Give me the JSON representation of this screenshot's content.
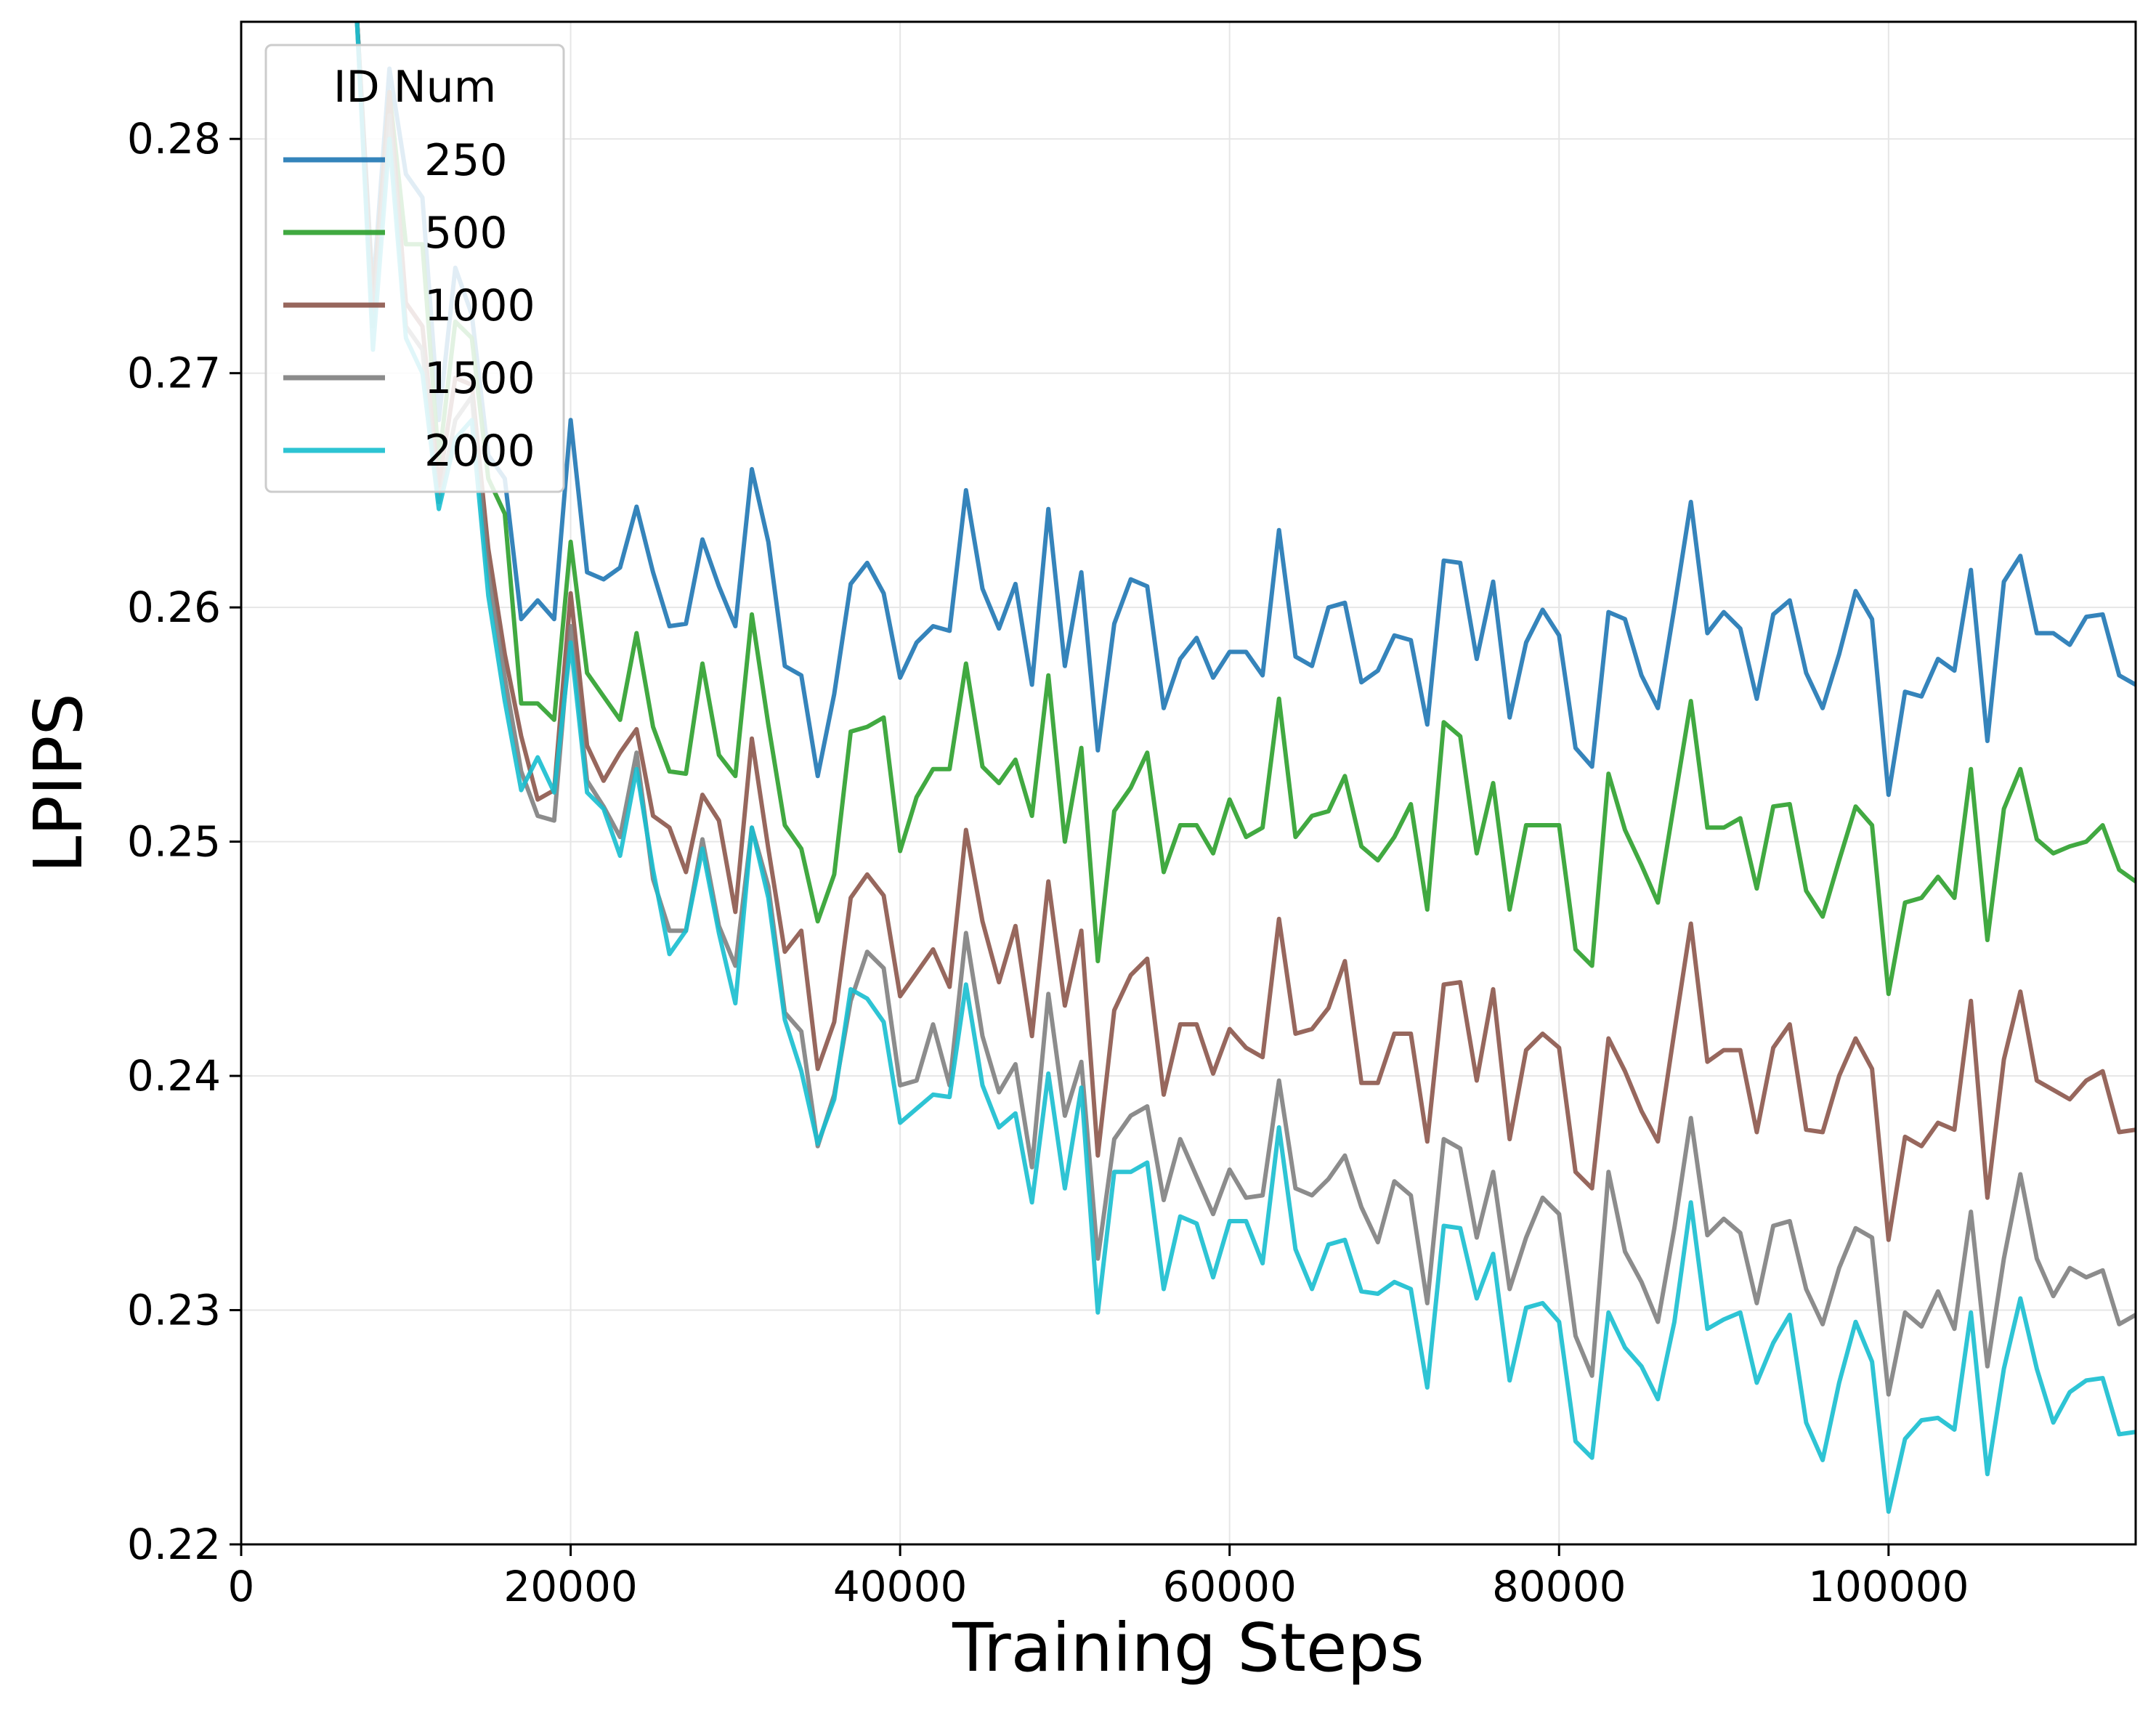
{
  "chart_data": {
    "type": "line",
    "title": "",
    "xlabel": "Training Steps",
    "ylabel": "LPIPS",
    "xlim": [
      0,
      115000
    ],
    "ylim": [
      0.22,
      0.285
    ],
    "x_ticks": [
      0,
      20000,
      40000,
      60000,
      80000,
      100000
    ],
    "x_tick_labels": [
      "0",
      "20000",
      "40000",
      "60000",
      "80000",
      "100000"
    ],
    "y_ticks": [
      0.22,
      0.23,
      0.24,
      0.25,
      0.26,
      0.27,
      0.28
    ],
    "y_tick_labels": [
      "0.22",
      "0.23",
      "0.24",
      "0.25",
      "0.26",
      "0.27",
      "0.28"
    ],
    "grid": true,
    "legend": {
      "title": "ID Num",
      "position": "top-left"
    },
    "x": [
      6000,
      7000,
      8000,
      9000,
      10000,
      11000,
      12000,
      13000,
      14000,
      15000,
      16000,
      17000,
      18000,
      19000,
      20000,
      21000,
      22000,
      23000,
      24000,
      25000,
      26000,
      27000,
      28000,
      29000,
      30000,
      31000,
      32000,
      33000,
      34000,
      35000,
      36000,
      37000,
      38000,
      39000,
      40000,
      41000,
      42000,
      43000,
      44000,
      45000,
      46000,
      47000,
      48000,
      49000,
      50000,
      51000,
      52000,
      53000,
      54000,
      55000,
      56000,
      57000,
      58000,
      59000,
      60000,
      61000,
      62000,
      63000,
      64000,
      65000,
      66000,
      67000,
      68000,
      69000,
      70000,
      71000,
      72000,
      73000,
      74000,
      75000,
      76000,
      77000,
      78000,
      79000,
      80000,
      81000,
      82000,
      83000,
      84000,
      85000,
      86000,
      87000,
      88000,
      89000,
      90000,
      91000,
      92000,
      93000,
      94000,
      95000,
      96000,
      97000,
      98000,
      99000,
      100000,
      101000,
      102000,
      103000,
      104000,
      105000,
      106000,
      107000,
      108000,
      109000,
      110000,
      111000,
      112000,
      113000,
      114000,
      115000
    ],
    "series": [
      {
        "name": "250",
        "color": "#1f77b4",
        "values": [
          0.2855,
          0.2855,
          0.2735,
          0.283,
          0.2785,
          0.2775,
          0.268,
          0.2745,
          0.2725,
          0.2665,
          0.2655,
          0.2595,
          0.2603,
          0.2595,
          0.268,
          0.2615,
          0.2612,
          0.2617,
          0.2643,
          0.2615,
          0.2592,
          0.2593,
          0.2629,
          0.2609,
          0.2592,
          0.2659,
          0.2628,
          0.2575,
          0.2571,
          0.2528,
          0.2563,
          0.261,
          0.2619,
          0.2606,
          0.257,
          0.2585,
          0.2592,
          0.259,
          0.265,
          0.2608,
          0.2591,
          0.261,
          0.2567,
          0.2642,
          0.2575,
          0.2615,
          0.2539,
          0.2593,
          0.2612,
          0.2609,
          0.2557,
          0.2578,
          0.2587,
          0.257,
          0.2581,
          0.2581,
          0.2571,
          0.2633,
          0.2579,
          0.2575,
          0.26,
          0.2602,
          0.2568,
          0.2573,
          0.2588,
          0.2586,
          0.255,
          0.262,
          0.2619,
          0.2578,
          0.2611,
          0.2553,
          0.2585,
          0.2599,
          0.2588,
          0.254,
          0.2532,
          0.2598,
          0.2595,
          0.2571,
          0.2557,
          0.26,
          0.2645,
          0.2589,
          0.2598,
          0.2591,
          0.2561,
          0.2597,
          0.2603,
          0.2572,
          0.2557,
          0.258,
          0.2607,
          0.2595,
          0.252,
          0.2564,
          0.2562,
          0.2578,
          0.2573,
          0.2616,
          0.2543,
          0.2611,
          0.2622,
          0.2589,
          0.2589,
          0.2584,
          0.2596,
          0.2597,
          0.2571,
          0.2567
        ]
      },
      {
        "name": "500",
        "color": "#2ca02c",
        "values": [
          0.2855,
          0.2855,
          0.273,
          0.282,
          0.2755,
          0.2755,
          0.2662,
          0.2722,
          0.2715,
          0.2655,
          0.264,
          0.2559,
          0.2559,
          0.2552,
          0.2628,
          0.2572,
          0.2562,
          0.2552,
          0.2589,
          0.2549,
          0.253,
          0.2529,
          0.2576,
          0.2537,
          0.2528,
          0.2597,
          0.255,
          0.2507,
          0.2497,
          0.2466,
          0.2486,
          0.2547,
          0.2549,
          0.2553,
          0.2496,
          0.2519,
          0.2531,
          0.2531,
          0.2576,
          0.2532,
          0.2525,
          0.2535,
          0.2511,
          0.2571,
          0.25,
          0.254,
          0.2449,
          0.2513,
          0.2523,
          0.2538,
          0.2487,
          0.2507,
          0.2507,
          0.2495,
          0.2518,
          0.2502,
          0.2506,
          0.2561,
          0.2502,
          0.2511,
          0.2513,
          0.2528,
          0.2498,
          0.2492,
          0.2502,
          0.2516,
          0.2471,
          0.2551,
          0.2545,
          0.2495,
          0.2525,
          0.2471,
          0.2507,
          0.2507,
          0.2507,
          0.2454,
          0.2447,
          0.2529,
          0.2505,
          0.249,
          0.2474,
          0.2517,
          0.256,
          0.2506,
          0.2506,
          0.251,
          0.248,
          0.2515,
          0.2516,
          0.2479,
          0.2468,
          0.2492,
          0.2515,
          0.2507,
          0.2435,
          0.2474,
          0.2476,
          0.2485,
          0.2476,
          0.2531,
          0.2458,
          0.2514,
          0.2531,
          0.2501,
          0.2495,
          0.2498,
          0.25,
          0.2507,
          0.2488,
          0.2483
        ]
      },
      {
        "name": "1000",
        "color": "#8c564b",
        "values": [
          0.2855,
          0.2855,
          0.273,
          0.282,
          0.273,
          0.272,
          0.2652,
          0.2698,
          0.2695,
          0.2625,
          0.258,
          0.2545,
          0.2518,
          0.2522,
          0.2606,
          0.2541,
          0.2526,
          0.2538,
          0.2548,
          0.2511,
          0.2506,
          0.2487,
          0.252,
          0.2509,
          0.247,
          0.2544,
          0.2497,
          0.2453,
          0.2462,
          0.2403,
          0.2423,
          0.2476,
          0.2486,
          0.2477,
          0.2434,
          0.2444,
          0.2454,
          0.2438,
          0.2505,
          0.2466,
          0.244,
          0.2464,
          0.2417,
          0.2483,
          0.243,
          0.2462,
          0.2366,
          0.2428,
          0.2443,
          0.245,
          0.2392,
          0.2422,
          0.2422,
          0.2401,
          0.242,
          0.2412,
          0.2408,
          0.2467,
          0.2418,
          0.242,
          0.2429,
          0.2449,
          0.2397,
          0.2397,
          0.2418,
          0.2418,
          0.2372,
          0.2439,
          0.244,
          0.2398,
          0.2437,
          0.2373,
          0.2411,
          0.2418,
          0.2412,
          0.2359,
          0.2352,
          0.2416,
          0.2402,
          0.2385,
          0.2372,
          0.2419,
          0.2465,
          0.2406,
          0.2411,
          0.2411,
          0.2376,
          0.2412,
          0.2422,
          0.2377,
          0.2376,
          0.24,
          0.2416,
          0.2403,
          0.233,
          0.2374,
          0.237,
          0.238,
          0.2377,
          0.2432,
          0.2348,
          0.2407,
          0.2436,
          0.2398,
          0.2394,
          0.239,
          0.2398,
          0.2402,
          0.2376,
          0.2377
        ]
      },
      {
        "name": "1500",
        "color": "#7f7f7f",
        "values": [
          0.2855,
          0.2855,
          0.272,
          0.281,
          0.272,
          0.271,
          0.2645,
          0.268,
          0.269,
          0.2615,
          0.257,
          0.253,
          0.2511,
          0.2509,
          0.2592,
          0.2526,
          0.2515,
          0.2502,
          0.2538,
          0.2484,
          0.2462,
          0.2462,
          0.2501,
          0.2464,
          0.2447,
          0.2506,
          0.2481,
          0.2427,
          0.2419,
          0.237,
          0.2392,
          0.2432,
          0.2453,
          0.2446,
          0.2396,
          0.2398,
          0.2422,
          0.2396,
          0.2461,
          0.2417,
          0.2393,
          0.2405,
          0.2361,
          0.2435,
          0.2383,
          0.2406,
          0.2322,
          0.2373,
          0.2383,
          0.2387,
          0.2347,
          0.2373,
          0.2357,
          0.2341,
          0.236,
          0.2348,
          0.2349,
          0.2398,
          0.2352,
          0.2349,
          0.2356,
          0.2366,
          0.2344,
          0.2329,
          0.2355,
          0.2349,
          0.2303,
          0.2373,
          0.2369,
          0.2331,
          0.2359,
          0.2309,
          0.2331,
          0.2348,
          0.2341,
          0.2289,
          0.2272,
          0.2359,
          0.2325,
          0.2312,
          0.2295,
          0.2335,
          0.2382,
          0.2332,
          0.2339,
          0.2333,
          0.2303,
          0.2336,
          0.2338,
          0.2309,
          0.2294,
          0.2318,
          0.2335,
          0.2331,
          0.2264,
          0.2299,
          0.2293,
          0.2308,
          0.2292,
          0.2342,
          0.2276,
          0.2322,
          0.2358,
          0.2322,
          0.2306,
          0.2318,
          0.2314,
          0.2317,
          0.2294,
          0.2298
        ]
      },
      {
        "name": "2000",
        "color": "#17becf",
        "values": [
          0.2855,
          0.2855,
          0.271,
          0.28,
          0.2715,
          0.27,
          0.2642,
          0.2672,
          0.268,
          0.2605,
          0.256,
          0.2522,
          0.2536,
          0.2521,
          0.2585,
          0.2521,
          0.2514,
          0.2494,
          0.2531,
          0.2488,
          0.2452,
          0.2462,
          0.2497,
          0.2461,
          0.2431,
          0.2506,
          0.2476,
          0.2424,
          0.2402,
          0.2371,
          0.239,
          0.2437,
          0.2433,
          0.2423,
          0.238,
          0.2386,
          0.2392,
          0.2391,
          0.2439,
          0.2396,
          0.2378,
          0.2384,
          0.2346,
          0.2401,
          0.2352,
          0.2395,
          0.2299,
          0.2359,
          0.2359,
          0.2363,
          0.2309,
          0.234,
          0.2337,
          0.2314,
          0.2338,
          0.2338,
          0.232,
          0.2378,
          0.2326,
          0.2309,
          0.2328,
          0.233,
          0.2308,
          0.2307,
          0.2312,
          0.2309,
          0.2267,
          0.2336,
          0.2335,
          0.2305,
          0.2324,
          0.227,
          0.2301,
          0.2303,
          0.2295,
          0.2244,
          0.2237,
          0.2299,
          0.2284,
          0.2276,
          0.2262,
          0.2295,
          0.2346,
          0.2292,
          0.2296,
          0.2299,
          0.2269,
          0.2286,
          0.2298,
          0.2252,
          0.2236,
          0.2269,
          0.2295,
          0.2278,
          0.2214,
          0.2245,
          0.2253,
          0.2254,
          0.2249,
          0.2299,
          0.223,
          0.2275,
          0.2305,
          0.2275,
          0.2252,
          0.2265,
          0.227,
          0.2271,
          0.2247,
          0.2248
        ]
      }
    ]
  }
}
